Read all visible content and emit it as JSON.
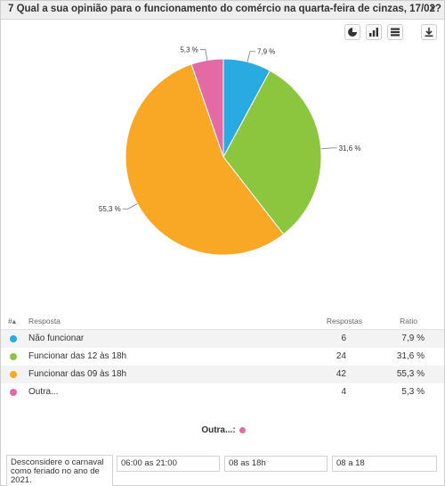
{
  "header": {
    "title": "7 Qual a sua opinião para o funcionamento do comércio na quarta-feira de cinzas, 17/02?",
    "caret": "▼"
  },
  "toolbar": {
    "icons": [
      "pie-chart-icon",
      "bar-chart-icon",
      "table-icon",
      "download-icon"
    ]
  },
  "chart_data": {
    "type": "pie",
    "slices": [
      {
        "label": "Não funcionar",
        "value": 7.9,
        "color": "#29aae1",
        "display": "7,9 %"
      },
      {
        "label": "Funcionar das 12 às 18h",
        "value": 31.6,
        "color": "#8cc63f",
        "display": "31,6 %"
      },
      {
        "label": "Funcionar das 09 às 18h",
        "value": 55.3,
        "color": "#f9a825",
        "display": "55,3 %"
      },
      {
        "label": "Outra...",
        "value": 5.3,
        "color": "#e46aa6",
        "display": "5,3 %"
      }
    ]
  },
  "table": {
    "headers": {
      "num": "#▴",
      "answer": "Resposta",
      "responses": "Respostas",
      "ratio": "Ratio"
    },
    "rows": [
      {
        "label": "Não funcionar",
        "count": "6",
        "ratio": "7,9 %",
        "color": "#29aae1"
      },
      {
        "label": "Funcionar das 12 às 18h",
        "count": "24",
        "ratio": "31,6 %",
        "color": "#8cc63f"
      },
      {
        "label": "Funcionar das 09 às 18h",
        "count": "42",
        "ratio": "55,3 %",
        "color": "#f9a825"
      },
      {
        "label": "Outra...",
        "count": "4",
        "ratio": "5,3 %",
        "color": "#e46aa6"
      }
    ]
  },
  "other": {
    "title": "Outra...:",
    "color": "#e46aa6",
    "answers": [
      "Desconsidere o carnaval como feriado no ano de 2021.",
      "06:00 as 21:00",
      "08 as 18h",
      "08 a 18"
    ]
  }
}
